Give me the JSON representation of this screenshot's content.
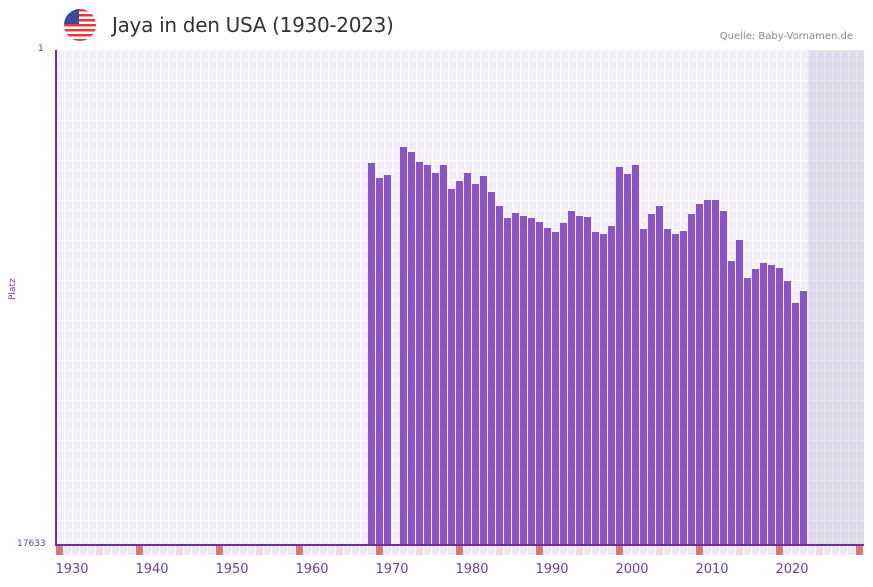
{
  "header": {
    "title": "Jaya in den USA (1930-2023)",
    "flag_icon": "us-flag-icon",
    "source": "Quelle: Baby-Vornamen.de"
  },
  "chart_data": {
    "type": "bar",
    "title": "Jaya in den USA (1930-2023)",
    "xlabel": "",
    "ylabel": "Platz",
    "y_axis_inverted": true,
    "ylim": [
      17633,
      1
    ],
    "y_ticks": [
      "1",
      "17633"
    ],
    "x_ticks": [
      "1930",
      "1940",
      "1950",
      "1960",
      "1970",
      "1980",
      "1990",
      "2000",
      "2010",
      "2020"
    ],
    "grid": true,
    "legend": null,
    "colors": {
      "bar": "#8a54c8",
      "axis": "#6b2e9a",
      "decade_marker": "#e5707a",
      "half_decade_marker": "#f4d6e0"
    },
    "x": [
      1969,
      1970,
      1971,
      1973,
      1974,
      1975,
      1976,
      1977,
      1978,
      1979,
      1980,
      1981,
      1982,
      1983,
      1984,
      1985,
      1986,
      1987,
      1988,
      1989,
      1990,
      1991,
      1992,
      1993,
      1994,
      1995,
      1996,
      1997,
      1998,
      1999,
      2000,
      2001,
      2002,
      2003,
      2004,
      2005,
      2006,
      2007,
      2008,
      2009,
      2010,
      2011,
      2012,
      2013,
      2014,
      2015,
      2016,
      2017,
      2018,
      2019,
      2020,
      2021,
      2022,
      2023
    ],
    "values": [
      4040,
      4560,
      4460,
      3440,
      3640,
      4000,
      4100,
      4400,
      4100,
      4960,
      4660,
      4400,
      4760,
      4500,
      5050,
      5550,
      5990,
      5810,
      5900,
      5990,
      6130,
      6330,
      6480,
      6160,
      5730,
      5910,
      5960,
      6500,
      6560,
      6270,
      4180,
      4420,
      4100,
      6360,
      5830,
      5540,
      6370,
      6560,
      6450,
      5860,
      5480,
      5360,
      5360,
      5730,
      7530,
      6770,
      8110,
      7810,
      7590,
      7650,
      7750,
      8230,
      9000,
      8590
    ]
  },
  "axes": {
    "y_top_label": "1",
    "y_bottom_label": "17633",
    "y_title": "Platz"
  }
}
